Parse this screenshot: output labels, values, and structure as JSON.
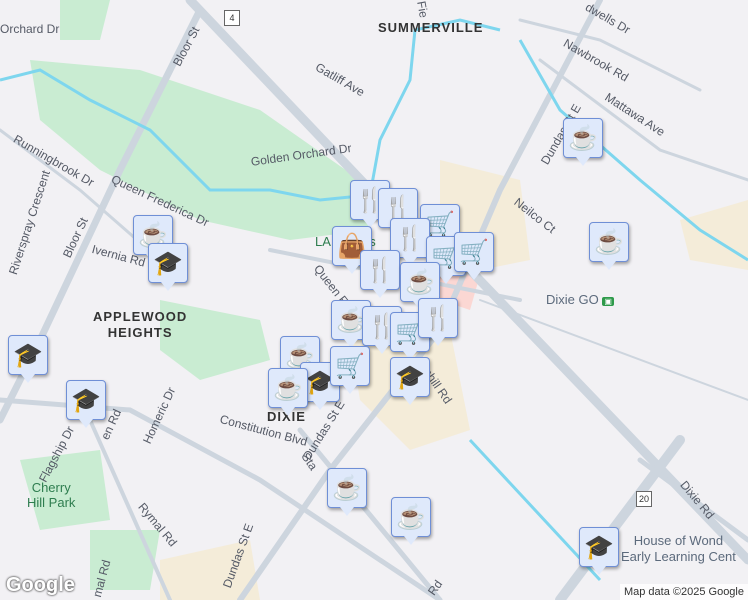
{
  "map": {
    "labels": {
      "summerville": "SUMMERVILLE",
      "fie": "Fie",
      "orchard_dr": "Orchard Dr",
      "bloor_st_top": "Bloor St",
      "gatliff": "Gatliff Ave",
      "nawbrook": "Nawbrook Rd",
      "dwells": "dwells Dr",
      "mattawa": "Mattawa Ave",
      "dundas_top": "Dundas St E",
      "golden_orchard": "Golden Orchard Dr",
      "runningbrook": "Runningbrook Dr",
      "queen_frederica": "Queen Frederica Dr",
      "riverspray": "Riverspray Crescent",
      "bloor_st_left": "Bloor St",
      "ivernia": "Ivernia Rd",
      "neilco": "Neilco Ct",
      "dixie_go": "Dixie GO",
      "la_fitness": "LA Fitness",
      "queen_fre": "Queen Fre",
      "applewood": "APPLEWOOD\nHEIGHTS",
      "dixie": "DIXIE",
      "dundas_mid": "Dundas St E",
      "constitution": "Constitution Blvd",
      "homeric": "Homeric Dr",
      "flagship": "Flagship Dr",
      "queen_rd": "en Rd",
      "bunhill": "unhill Rd",
      "cherry_hill": "Cherry\nHill Park",
      "rymal": "Rymal Rd",
      "rymal2": "mal Rd",
      "dundas_bottom": "Dundas St E",
      "stanfield": "Sta",
      "dixie_rd": "Dixie Rd",
      "house_of_wonder": "House of Wond\nEarly Learning Cent",
      "rd_bottom": "Rd"
    },
    "route_shields": [
      "4",
      "20"
    ],
    "markers": [
      "coffee",
      "coffee",
      "coffee",
      "school",
      "school",
      "school",
      "restaurant",
      "restaurant",
      "cart",
      "restaurant",
      "cart",
      "cart",
      "shopping",
      "restaurant",
      "coffee",
      "coffee",
      "restaurant",
      "cart",
      "restaurant",
      "school",
      "coffee",
      "school",
      "coffee",
      "cart",
      "coffee",
      "coffee",
      "school"
    ],
    "icons": {
      "coffee": "☕",
      "school": "🎓",
      "restaurant": "🍴",
      "cart": "🛒",
      "shopping": "👜"
    },
    "colors": {
      "river": "#7ed6ee",
      "park": "#c9ecd2",
      "commercial": "#f4ecd9",
      "road": "#cdd5de",
      "marker_bg": "#dfe9fb",
      "icon": "#14406a"
    },
    "attribution": "Map data ©2025 Google",
    "logo": "Google"
  }
}
